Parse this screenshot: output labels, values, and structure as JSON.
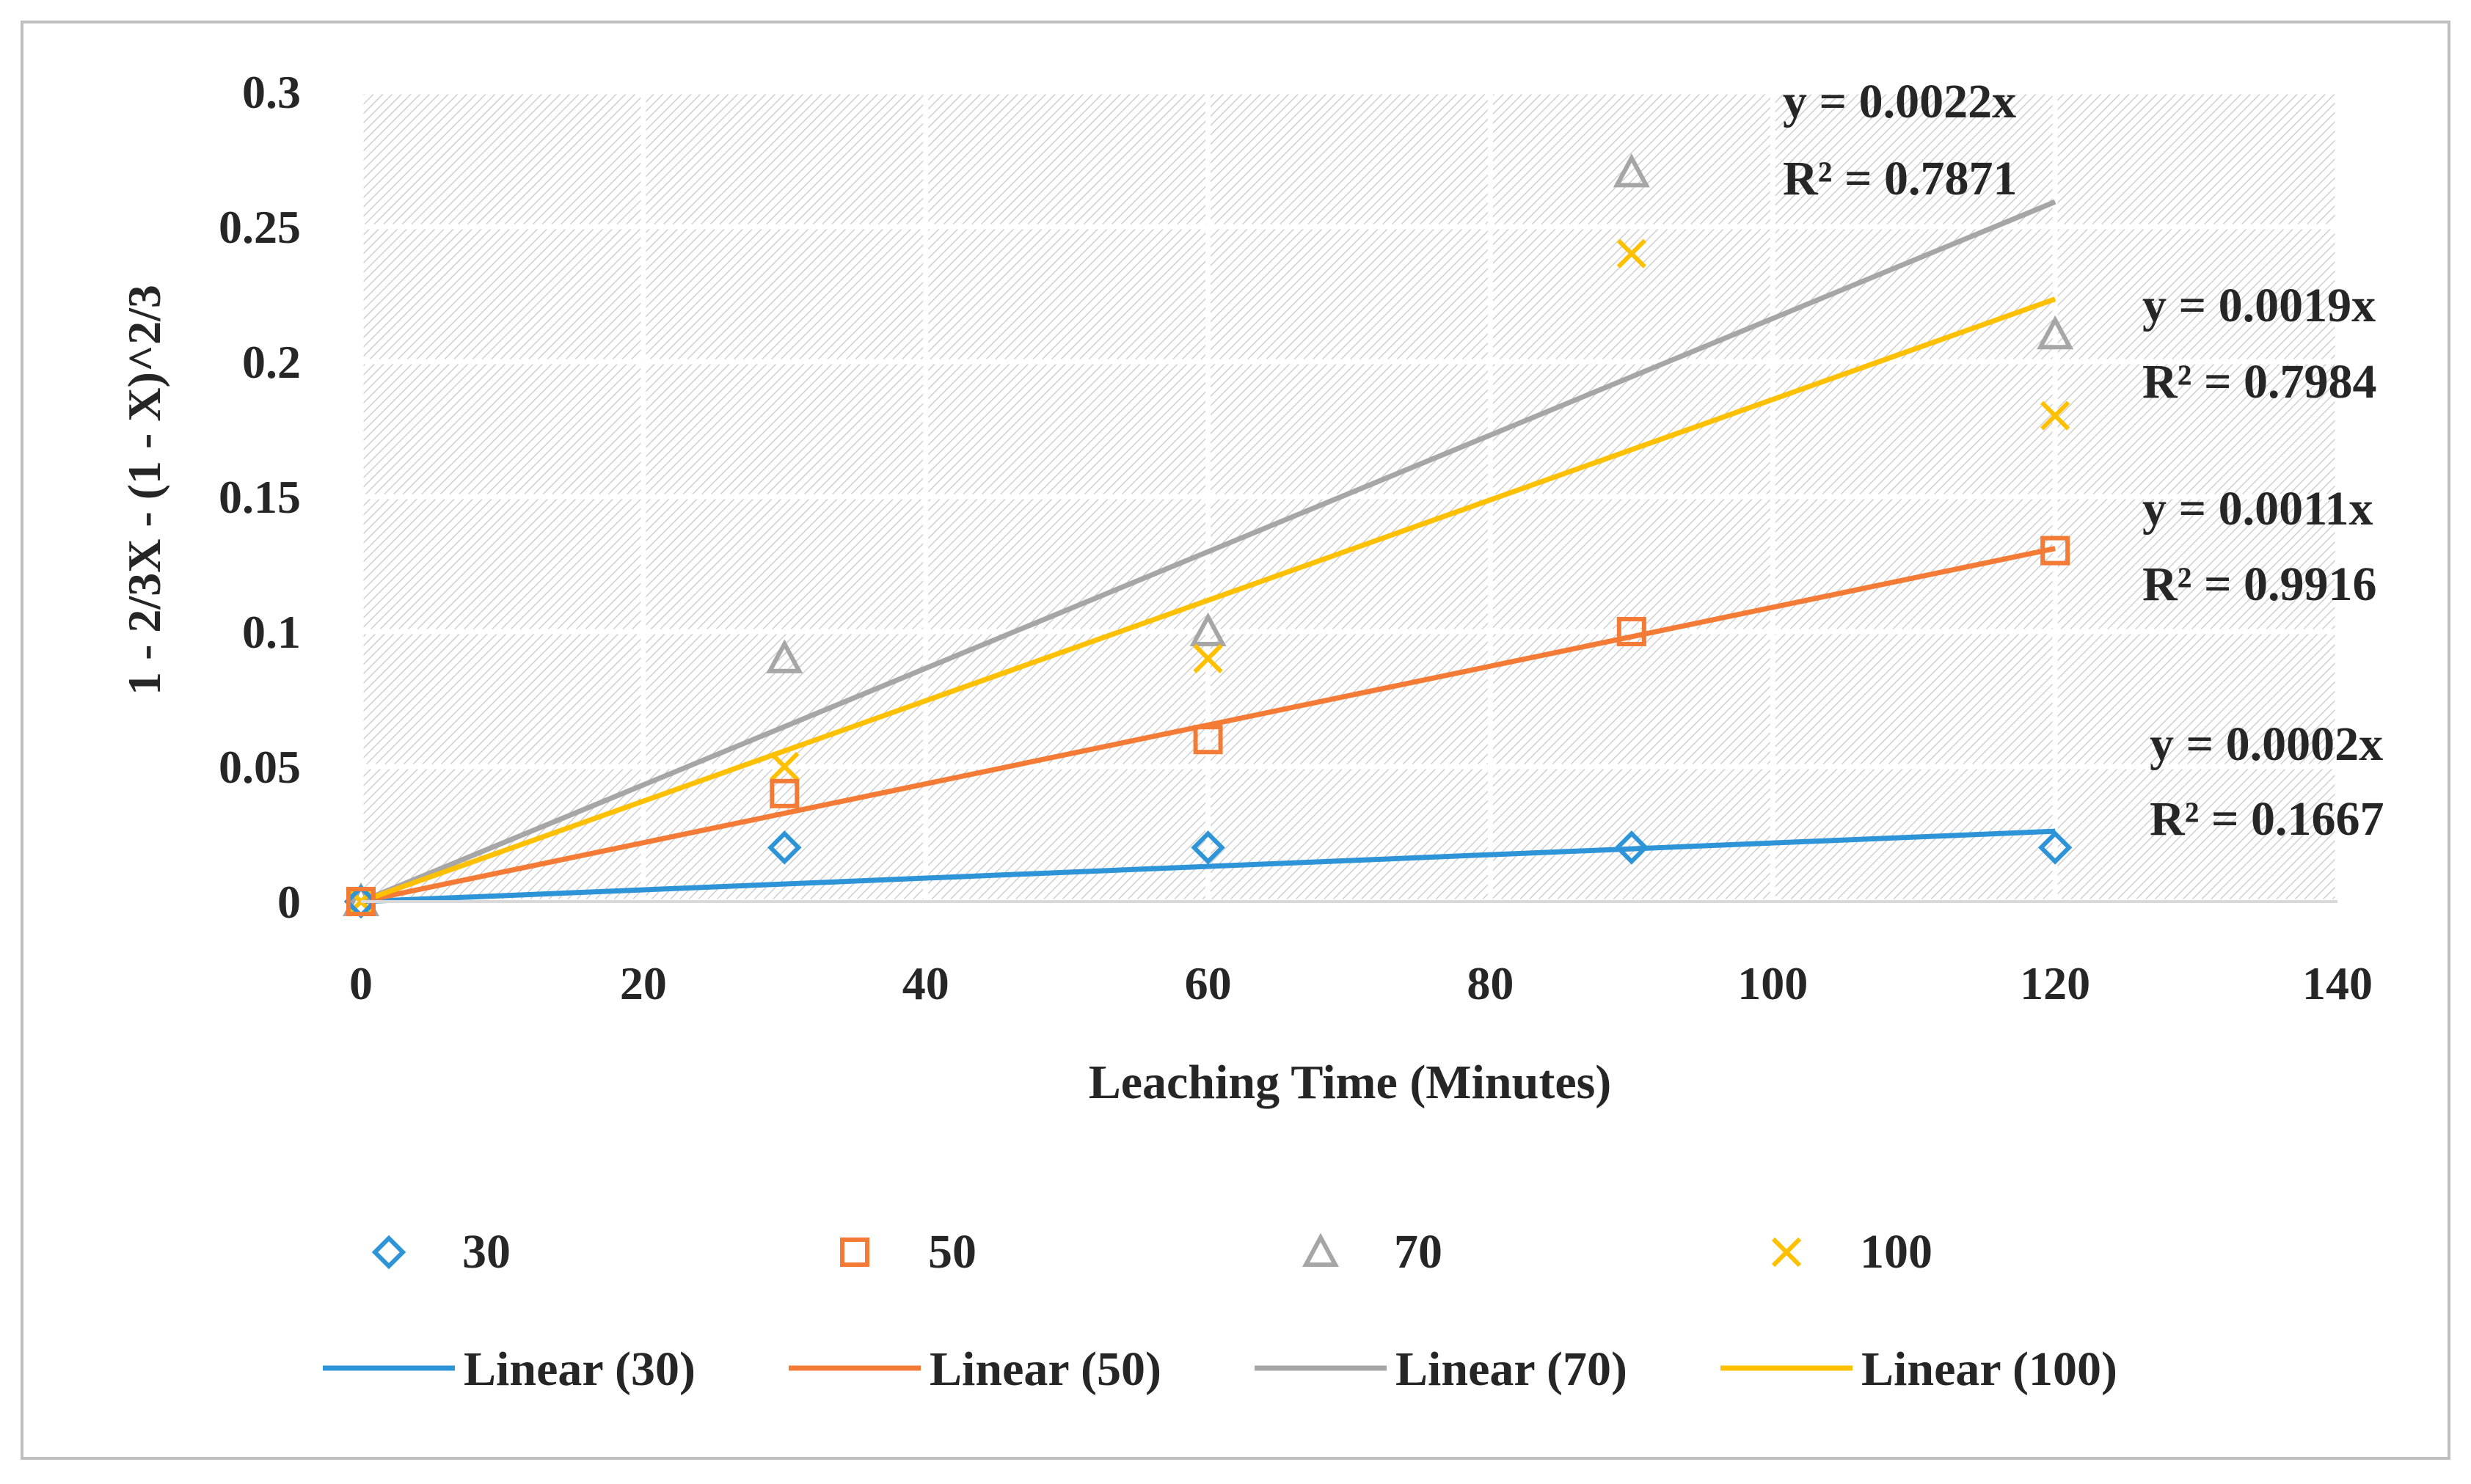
{
  "chart_data": {
    "type": "scatter",
    "xlabel": "Leaching Time (Minutes)",
    "ylabel": "1 - 2/3X - (1 - X)^2/3",
    "xlim": [
      0,
      140
    ],
    "ylim": [
      0,
      0.3
    ],
    "x_ticks": [
      0,
      20,
      40,
      60,
      80,
      100,
      120,
      140
    ],
    "x_tick_labels": [
      "0",
      "20",
      "40",
      "60",
      "80",
      "100",
      "120",
      "140"
    ],
    "y_ticks": [
      0,
      0.05,
      0.1,
      0.15,
      0.2,
      0.25,
      0.3
    ],
    "y_tick_labels": [
      "0",
      "0.05",
      "0.1",
      "0.15",
      "0.2",
      "0.25",
      "0.3"
    ],
    "grid": true,
    "plot_background": "hatched",
    "legend_position": "bottom",
    "series": [
      {
        "name": "30",
        "marker": "diamond",
        "color": "#2E94D8",
        "x": [
          0,
          30,
          60,
          90,
          120
        ],
        "y": [
          0,
          0.02,
          0.02,
          0.02,
          0.02
        ],
        "trendline": {
          "name": "Linear (30)",
          "slope": 0.000217,
          "equation": "y = 0.0002x",
          "r2": "R² = 0.1667"
        }
      },
      {
        "name": "50",
        "marker": "square",
        "color": "#F47B35",
        "x": [
          0,
          30,
          60,
          90,
          120
        ],
        "y": [
          0,
          0.04,
          0.06,
          0.1,
          0.13
        ],
        "trendline": {
          "name": "Linear (50)",
          "slope": 0.00109,
          "equation": "y = 0.0011x",
          "r2": "R² = 0.9916"
        }
      },
      {
        "name": "70",
        "marker": "triangle",
        "color": "#A6A6A6",
        "x": [
          0,
          30,
          60,
          90,
          120
        ],
        "y": [
          0,
          0.09,
          0.1,
          0.27,
          0.21
        ],
        "trendline": {
          "name": "Linear (70)",
          "slope": 0.00216,
          "equation": "y = 0.0022x",
          "r2": "R² = 0.7871"
        }
      },
      {
        "name": "100",
        "marker": "x",
        "color": "#FFC000",
        "x": [
          0,
          30,
          60,
          90,
          120
        ],
        "y": [
          0,
          0.05,
          0.09,
          0.24,
          0.18
        ],
        "trendline": {
          "name": "Linear (100)",
          "slope": 0.00186,
          "equation": "y = 0.0019x",
          "r2": "R² = 0.7984"
        }
      }
    ]
  }
}
